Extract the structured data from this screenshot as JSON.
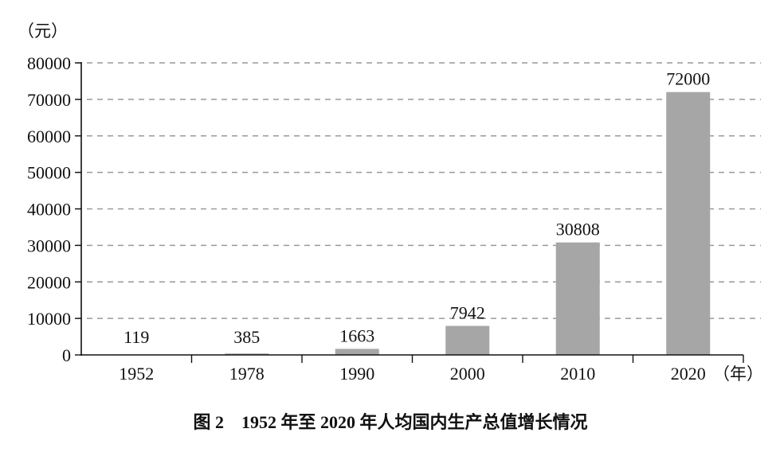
{
  "chart_data": {
    "type": "bar",
    "title": "图 2　1952 年至 2020 年人均国内生产总值增长情况",
    "ylabel": "（元）",
    "xlabel": "（年）",
    "categories": [
      "1952",
      "1978",
      "1990",
      "2000",
      "2010",
      "2020"
    ],
    "values": [
      119,
      385,
      1663,
      7942,
      30808,
      72000
    ],
    "data_labels": [
      "119",
      "385",
      "1663",
      "7942",
      "30808",
      "72000"
    ],
    "ylim": [
      0,
      80000
    ],
    "yticks": [
      "0",
      "10000",
      "20000",
      "30000",
      "40000",
      "50000",
      "60000",
      "70000",
      "80000"
    ],
    "grid": "horizontal dashed",
    "bar_color": "#a6a6a6",
    "grid_color": "#999999"
  }
}
